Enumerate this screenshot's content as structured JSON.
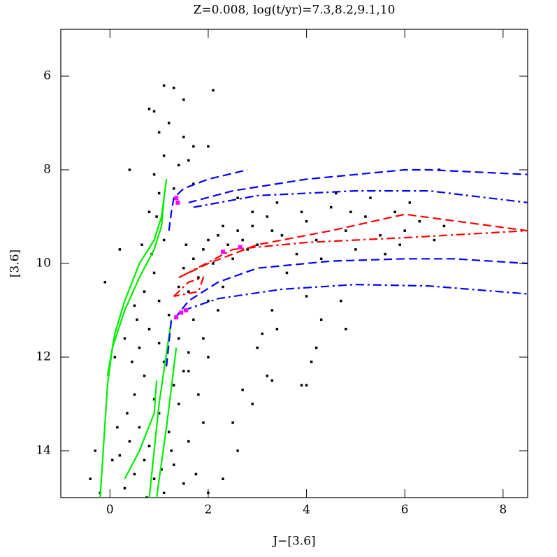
{
  "chart_data": {
    "type": "scatter",
    "title": "Z=0.008,  log(t/yr)=7.3,8.2,9.1,10",
    "x_label": "J−[3.6]",
    "y_label": "[3.6]",
    "xlim": [
      -1,
      8.5
    ],
    "ylim": [
      15,
      5
    ],
    "xticks": [
      0,
      2,
      4,
      6,
      8
    ],
    "yticks": [
      6,
      8,
      10,
      12,
      14
    ],
    "mirror_ticks": true,
    "points": {
      "color": "#000000",
      "x": [
        0.3,
        0.5,
        0.7,
        0.9,
        1.1,
        1.3,
        1.5,
        0.4,
        0.6,
        0.8,
        1.0,
        1.2,
        1.4,
        1.6,
        0.5,
        0.7,
        0.9,
        1.1,
        1.3,
        1.5,
        0.6,
        0.8,
        1.0,
        1.2,
        1.4,
        1.6,
        0.2,
        0.35,
        1.75,
        1.9,
        2.0,
        1.8,
        0.15,
        1.05,
        0.75,
        1.25,
        0.45,
        0.55,
        0.7,
        0.9,
        0.5,
        0.3,
        0.85,
        1.0,
        1.1,
        0.65,
        0.95,
        0.2,
        -0.1,
        0.1,
        0.8,
        0.9,
        1.1,
        1.3,
        1.0,
        1.2,
        1.5,
        1.7,
        1.1,
        0.9,
        1.4,
        1.6,
        2.0,
        1.5,
        1.3,
        1.7,
        0.8,
        2.1,
        0.4,
        1.0,
        1.5,
        1.7,
        1.9,
        2.0,
        2.2,
        2.3,
        2.4,
        2.6,
        2.1,
        1.8,
        2.5,
        2.7,
        1.6,
        2.0,
        1.7,
        1.9,
        2.2,
        1.6,
        2.0,
        2.3,
        2.8,
        2.9,
        1.4,
        1.55,
        3.2,
        3.5,
        3.8,
        4.0,
        4.2,
        4.5,
        4.8,
        5.0,
        5.2,
        5.5,
        5.8,
        6.0,
        6.3,
        6.6,
        6.7,
        6.8,
        4.6,
        5.3,
        3.4,
        3.0,
        4.3,
        5.6,
        3.6,
        6.1,
        5.9,
        4.9,
        3.9,
        2.6,
        2.9,
        3.3,
        3.3,
        3.4,
        4.0,
        4.3,
        4.7,
        4.8,
        4.2,
        4.1,
        3.9,
        4.0,
        3.2,
        3.3,
        3.0,
        2.9,
        2.6,
        2.3,
        2.5,
        2.7,
        3.1,
        -0.4,
        -0.2,
        0.05,
        -0.3
      ],
      "y": [
        14.8,
        14.5,
        14.2,
        14.6,
        14.9,
        14.3,
        14.7,
        13.8,
        13.5,
        13.9,
        13.2,
        13.6,
        13.0,
        13.8,
        12.8,
        12.4,
        12.9,
        12.1,
        12.6,
        12.3,
        11.8,
        11.4,
        11.7,
        11.1,
        11.6,
        11.9,
        14.1,
        13.2,
        14.5,
        13.4,
        14.9,
        12.8,
        13.5,
        14.4,
        15.0,
        14.0,
        12.1,
        11.2,
        10.6,
        10.2,
        10.9,
        11.6,
        9.8,
        10.8,
        9.5,
        9.6,
        9.0,
        9.7,
        10.4,
        12.0,
        6.7,
        6.75,
        6.2,
        6.25,
        7.2,
        7.0,
        7.3,
        7.5,
        7.7,
        8.1,
        7.9,
        7.8,
        7.5,
        6.5,
        8.4,
        8.3,
        8.9,
        6.3,
        8.0,
        8.5,
        10.1,
        9.9,
        9.7,
        9.5,
        9.4,
        9.2,
        9.6,
        9.3,
        10.0,
        10.3,
        9.9,
        9.5,
        10.6,
        10.8,
        11.2,
        11.6,
        11.0,
        12.3,
        12.0,
        10.5,
        9.7,
        9.2,
        10.5,
        9.6,
        9.0,
        9.4,
        9.8,
        9.1,
        9.5,
        8.8,
        9.3,
        9.7,
        9.0,
        9.4,
        8.9,
        9.3,
        9.1,
        9.5,
        8.0,
        9.2,
        8.5,
        8.6,
        8.7,
        9.6,
        9.9,
        9.8,
        10.2,
        8.7,
        9.6,
        8.9,
        8.9,
        8.6,
        8.9,
        9.3,
        11.0,
        11.4,
        10.7,
        11.2,
        10.8,
        11.4,
        11.8,
        12.1,
        12.6,
        12.6,
        12.4,
        12.5,
        11.8,
        13.0,
        14.0,
        14.6,
        13.4,
        12.7,
        11.5,
        14.6,
        14.9,
        14.2,
        14.0
      ]
    },
    "series": [
      {
        "color": "#00ee00",
        "dash": "solid",
        "x": [
          -0.2,
          -0.05,
          0.05,
          0.3,
          0.6,
          0.9,
          1.05,
          1.1,
          1.15,
          1.05,
          0.9,
          0.6,
          0.3,
          0.1,
          -0.05,
          null,
          0.8,
          1.0,
          1.25,
          null,
          0.95,
          1.15,
          1.35,
          null,
          0.3,
          0.6,
          0.9,
          0.95
        ],
        "y": [
          15,
          12.6,
          11.8,
          11.0,
          10.3,
          9.7,
          9.2,
          8.6,
          8.2,
          9.0,
          9.5,
          10.0,
          10.8,
          11.5,
          12.4,
          null,
          15,
          13.0,
          11.2,
          null,
          15,
          13.5,
          11.8,
          null,
          14.6,
          14.0,
          13.2,
          12.5
        ]
      },
      {
        "color": "#0000ff",
        "dash": "dashed",
        "x": [
          1.2,
          1.25,
          1.3,
          1.5,
          2.0,
          2.8,
          null,
          1.6,
          2.5,
          4.0,
          6.0,
          6.5,
          8.5
        ],
        "y": [
          9.3,
          8.9,
          8.6,
          8.4,
          8.2,
          8.0,
          null,
          8.7,
          8.45,
          8.2,
          8.0,
          8.0,
          8.1
        ]
      },
      {
        "color": "#0000ff",
        "dash": "dashdot",
        "x": [
          1.7,
          3.0,
          5.0,
          6.5,
          8.5
        ],
        "y": [
          8.8,
          8.55,
          8.45,
          8.45,
          8.7
        ]
      },
      {
        "color": "#0000ff",
        "dash": "dashed",
        "x": [
          1.15,
          1.25,
          1.3,
          1.6,
          2.2,
          3.0,
          4.5,
          6.0,
          7.0,
          8.5
        ],
        "y": [
          12.2,
          11.2,
          11.2,
          10.8,
          10.4,
          10.1,
          9.95,
          9.9,
          9.9,
          10.0
        ]
      },
      {
        "color": "#0000ff",
        "dash": "dashdot",
        "x": [
          1.5,
          2.2,
          3.5,
          5.0,
          6.5,
          8.5
        ],
        "y": [
          11.0,
          10.75,
          10.55,
          10.45,
          10.48,
          10.65
        ]
      },
      {
        "color": "#ff0000",
        "dash": "dashed",
        "x": [
          1.4,
          2.0,
          3.0,
          4.5,
          6.0,
          8.5
        ],
        "y": [
          10.3,
          10.0,
          9.6,
          9.3,
          8.95,
          9.3
        ]
      },
      {
        "color": "#ff0000",
        "dash": "dashdot",
        "x": [
          1.5,
          2.5,
          4.0,
          6.0,
          8.5,
          null,
          1.3,
          1.6,
          1.9,
          1.8,
          1.3
        ],
        "y": [
          10.25,
          9.7,
          9.55,
          9.45,
          9.3,
          null,
          10.7,
          10.4,
          10.3,
          10.6,
          10.7
        ]
      }
    ],
    "markers": {
      "color": "#ff00ff",
      "x": [
        1.35,
        1.38,
        2.3,
        2.65,
        1.45,
        1.55,
        1.35
      ],
      "y": [
        8.6,
        8.7,
        9.75,
        9.65,
        11.05,
        11.0,
        11.15
      ]
    }
  }
}
